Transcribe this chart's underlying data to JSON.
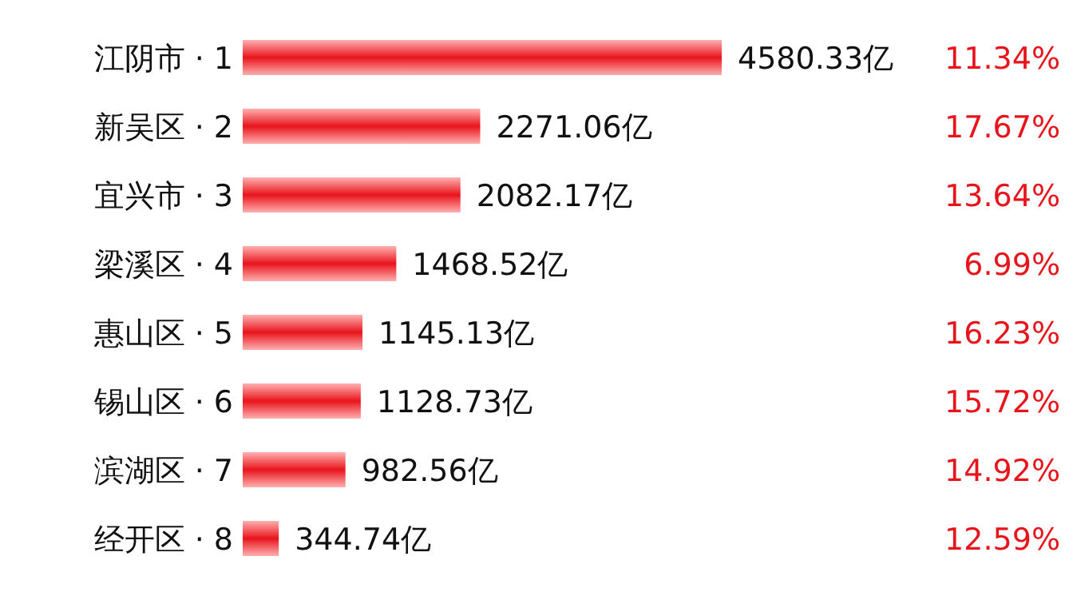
{
  "chart_data": {
    "type": "bar",
    "orientation": "horizontal",
    "categories": [
      "江阴市 · 1",
      "新吴区 · 2",
      "宜兴市 · 3",
      "梁溪区 · 4",
      "惠山区 · 5",
      "锡山区 · 6",
      "滨湖区 · 7",
      "经开区 · 8"
    ],
    "values": [
      4580.33,
      2271.06,
      2082.17,
      1468.52,
      1145.13,
      1128.73,
      982.56,
      344.74
    ],
    "value_labels": [
      "4580.33亿",
      "2271.06亿",
      "2082.17亿",
      "1468.52亿",
      "1145.13亿",
      "1128.73亿",
      "982.56亿",
      "344.74亿"
    ],
    "color": "#e8141c",
    "annotations": [
      "11.34%",
      "17.67%",
      "13.64%",
      "6.99%",
      "16.23%",
      "15.72%",
      "14.92%",
      "12.59%"
    ]
  }
}
